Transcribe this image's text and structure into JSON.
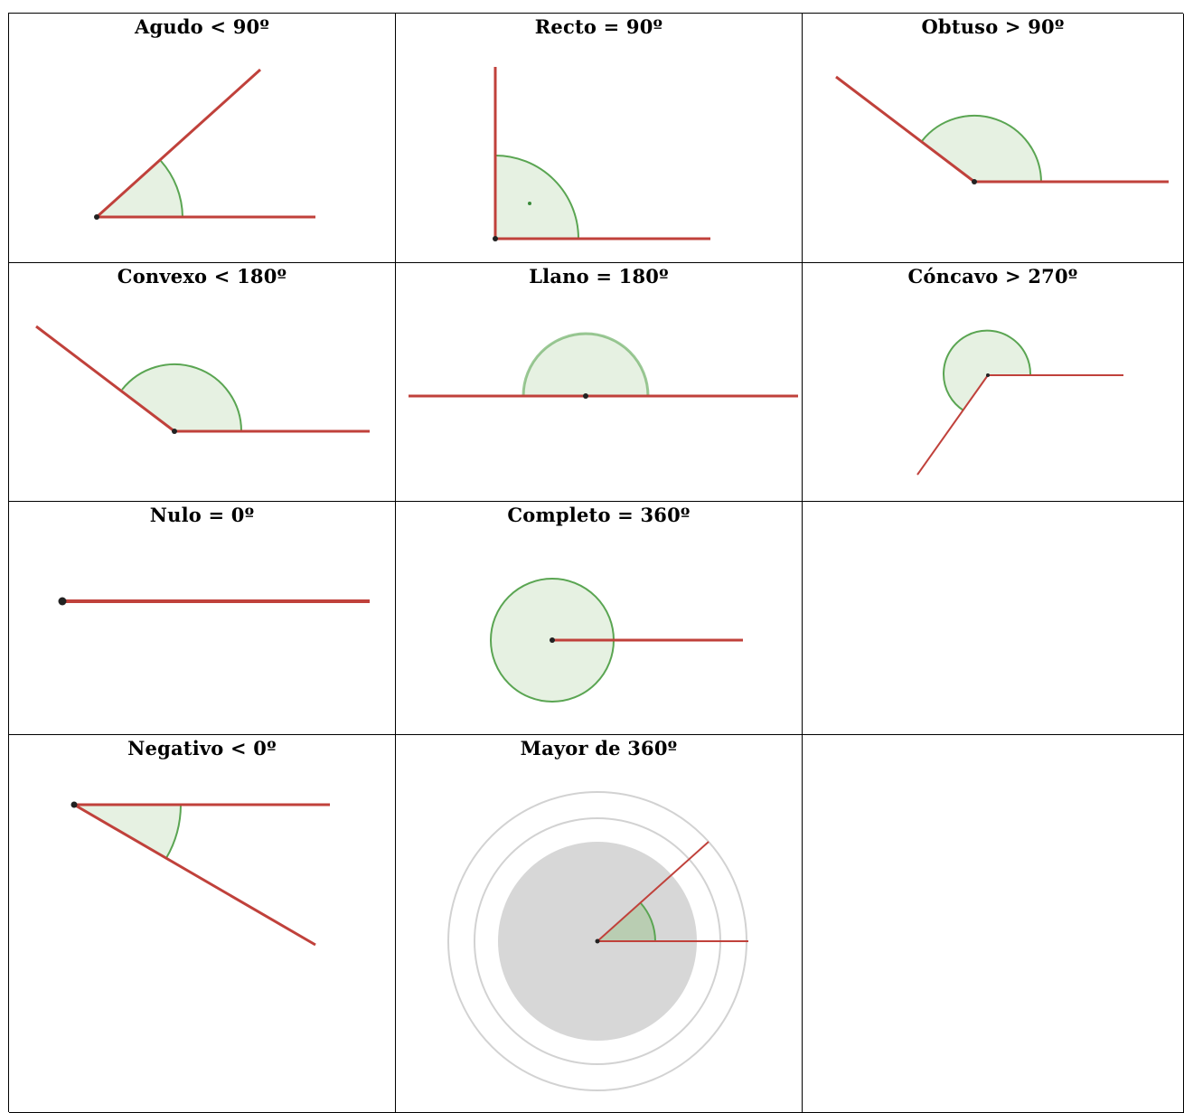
{
  "colors": {
    "ray": "#c0413b",
    "arc_stroke": "#5aa552",
    "arc_fill": "#e6f1e2",
    "vertex": "#222222",
    "gray_disc": "#d7d7d7",
    "gray_ring": "#d2d2d2"
  },
  "cells": [
    {
      "id": "agudo",
      "title": "Agudo < 90º"
    },
    {
      "id": "recto",
      "title": "Recto = 90º"
    },
    {
      "id": "obtuso",
      "title": "Obtuso > 90º"
    },
    {
      "id": "convexo",
      "title": "Convexo < 180º"
    },
    {
      "id": "llano",
      "title": "Llano = 180º"
    },
    {
      "id": "concavo",
      "title": "Cóncavo > 270º"
    },
    {
      "id": "nulo",
      "title": "Nulo = 0º"
    },
    {
      "id": "completo",
      "title": "Completo = 360º"
    },
    {
      "id": "vacio-1",
      "title": ""
    },
    {
      "id": "negativo",
      "title": "Negativo < 0º"
    },
    {
      "id": "mayor360",
      "title": "Mayor de 360º"
    },
    {
      "id": "vacio-2",
      "title": ""
    }
  ]
}
